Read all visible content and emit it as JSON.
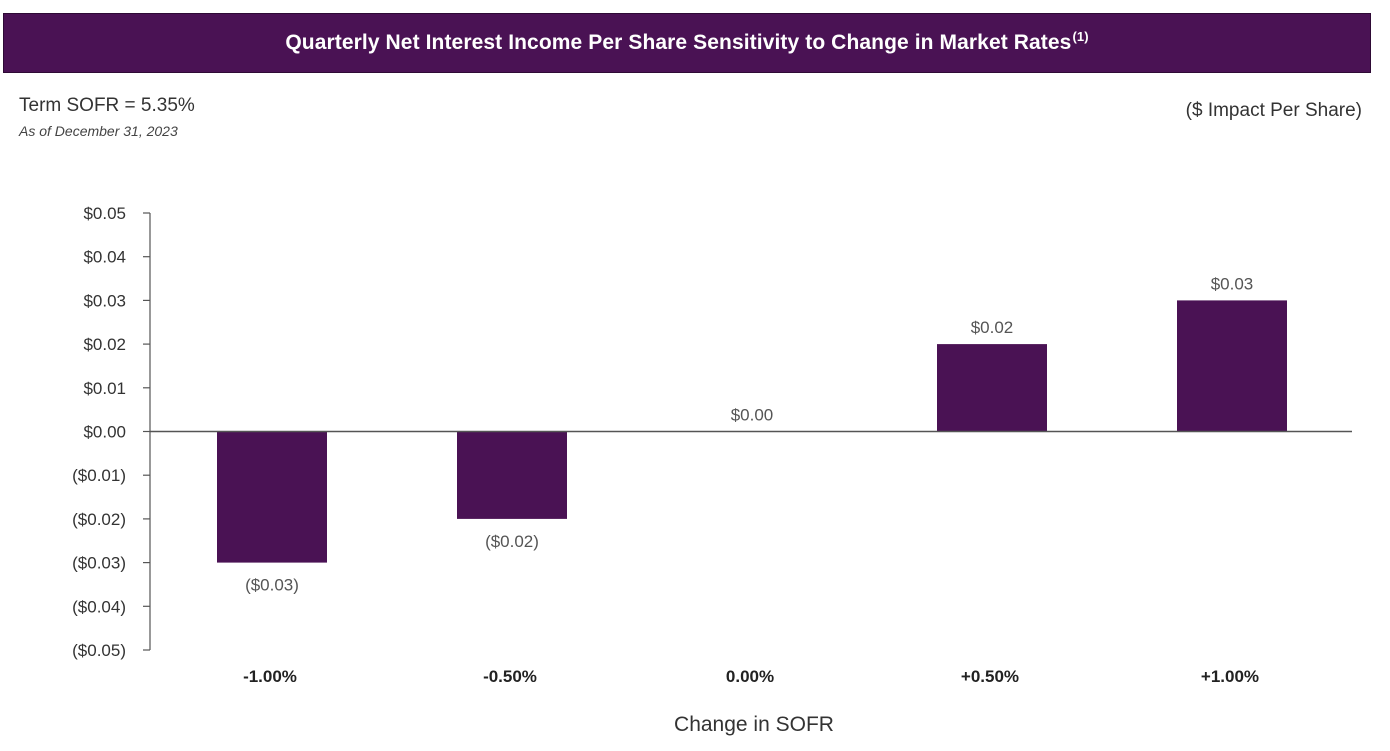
{
  "header": {
    "title": "Quarterly Net Interest Income Per Share Sensitivity to Change in Market Rates",
    "footnote_ref": "(1)"
  },
  "subheader": {
    "rate": "Term SOFR = 5.35%",
    "as_of": "As of December 31, 2023",
    "units": "($ Impact Per Share)"
  },
  "colors": {
    "banner": "#4a1254",
    "bar": "#4a1254",
    "axis": "#555555"
  },
  "chart_data": {
    "type": "bar",
    "title": "Quarterly Net Interest Income Per Share Sensitivity to Change in Market Rates",
    "xlabel": "Change in SOFR",
    "ylabel": "",
    "categories": [
      "-1.00%",
      "-0.50%",
      "0.00%",
      "+0.50%",
      "+1.00%"
    ],
    "values": [
      -0.03,
      -0.02,
      0.0,
      0.02,
      0.03
    ],
    "data_labels": [
      "($0.03)",
      "($0.02)",
      "$0.00",
      "$0.02",
      "$0.03"
    ],
    "ylim": [
      -0.05,
      0.05
    ],
    "y_ticks": [
      0.05,
      0.04,
      0.03,
      0.02,
      0.01,
      0.0,
      -0.01,
      -0.02,
      -0.03,
      -0.04,
      -0.05
    ],
    "y_tick_labels": [
      "$0.05",
      "$0.04",
      "$0.03",
      "$0.02",
      "$0.01",
      "$0.00",
      "($0.01)",
      "($0.02)",
      "($0.03)",
      "($0.04)",
      "($0.05)"
    ],
    "grid": false,
    "legend": "none"
  }
}
